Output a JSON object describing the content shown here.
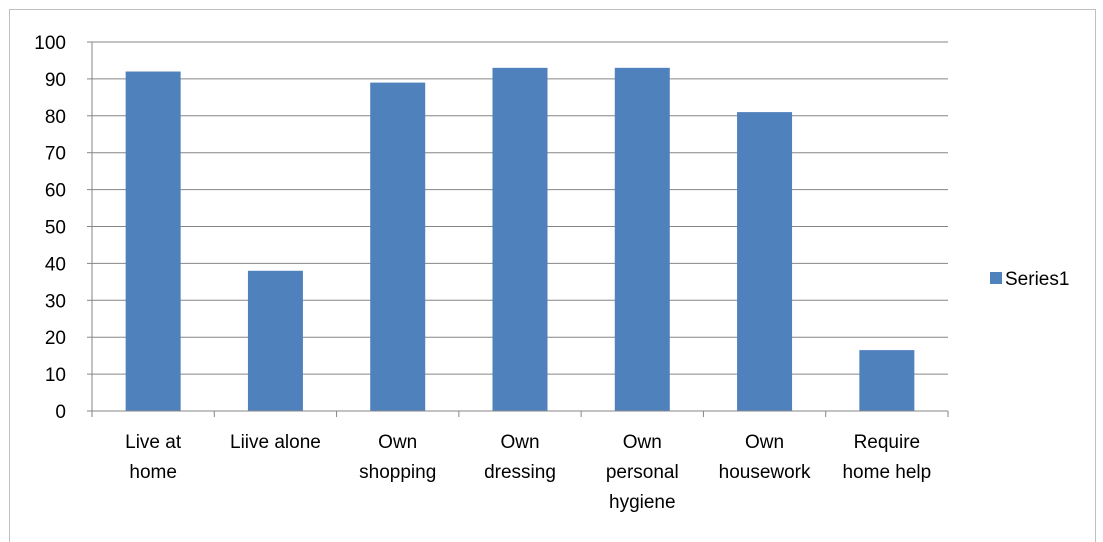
{
  "chart_data": {
    "type": "bar",
    "categories": [
      [
        "Live at",
        "home"
      ],
      [
        "Liive alone"
      ],
      [
        "Own",
        "shopping"
      ],
      [
        "Own",
        "dressing"
      ],
      [
        "Own",
        "personal",
        "hygiene"
      ],
      [
        "Own",
        "housework"
      ],
      [
        "Require",
        "home help"
      ]
    ],
    "series": [
      {
        "name": "Series1",
        "values": [
          92,
          38,
          89,
          93,
          93,
          81,
          16.5
        ],
        "color": "#4f81bd"
      }
    ],
    "ylim": [
      0,
      100
    ],
    "yticks": [
      0,
      10,
      20,
      30,
      40,
      50,
      60,
      70,
      80,
      90,
      100
    ],
    "grid": true,
    "legend_position": "right",
    "title": "",
    "xlabel": "",
    "ylabel": ""
  }
}
